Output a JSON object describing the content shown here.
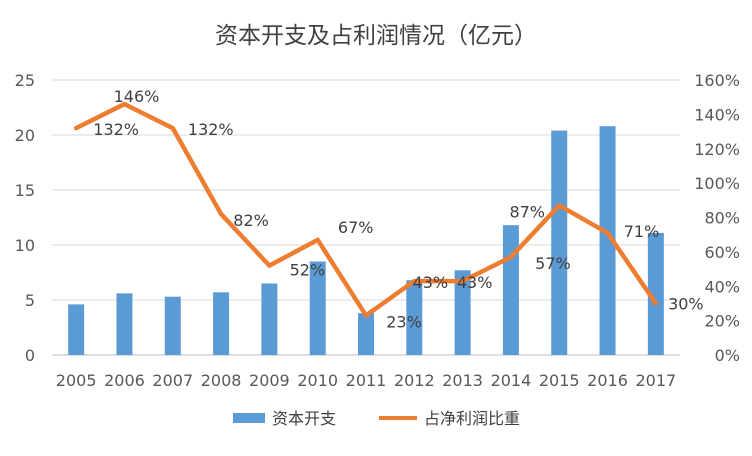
{
  "chart_data": {
    "type": "bar+line",
    "title": "资本开支及占利润情况（亿元）",
    "categories": [
      "2005",
      "2006",
      "2007",
      "2008",
      "2009",
      "2010",
      "2011",
      "2012",
      "2013",
      "2014",
      "2015",
      "2016",
      "2017"
    ],
    "y_left": {
      "min": 0,
      "max": 25,
      "ticks": [
        "0",
        "5",
        "10",
        "15",
        "20",
        "25"
      ]
    },
    "y_right": {
      "min": 0,
      "max": 1.6,
      "ticks": [
        "0%",
        "20%",
        "40%",
        "60%",
        "80%",
        "100%",
        "120%",
        "140%",
        "160%"
      ]
    },
    "series": [
      {
        "name": "资本开支",
        "kind": "bar",
        "axis": "left",
        "color": "#5B9BD5",
        "values": [
          4.6,
          5.6,
          5.3,
          5.7,
          6.5,
          8.5,
          3.8,
          6.8,
          7.7,
          11.8,
          20.4,
          20.8,
          11.1
        ]
      },
      {
        "name": "占净利润比重",
        "kind": "line",
        "axis": "right",
        "color": "#ED7D31",
        "values": [
          1.32,
          1.46,
          1.32,
          0.82,
          0.52,
          0.67,
          0.23,
          0.43,
          0.43,
          0.57,
          0.87,
          0.71,
          0.3
        ],
        "labels": [
          "132%",
          "146%",
          "132%",
          "82%",
          "52%",
          "67%",
          "23%",
          "43%",
          "43%",
          "57%",
          "87%",
          "71%",
          "30%"
        ]
      }
    ],
    "grid": true,
    "legend_position": "bottom"
  }
}
